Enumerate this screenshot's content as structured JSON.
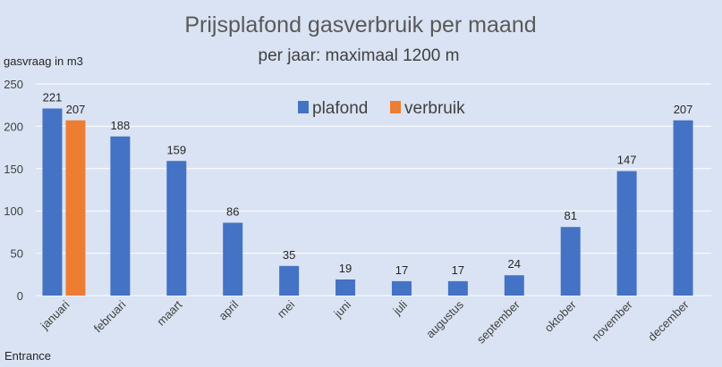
{
  "chart_data": {
    "type": "bar",
    "title": "Prijsplafond gasverbruik per maand",
    "subtitle": "per jaar: maximaal 1200 m",
    "ylabel": "gasvraag in m3",
    "xlabel": "",
    "ylim": [
      0,
      250
    ],
    "yticks": [
      0,
      50,
      100,
      150,
      200,
      250
    ],
    "grid": true,
    "legend_position": "top-center",
    "categories": [
      "januari",
      "februari",
      "maart",
      "april",
      "mei",
      "juni",
      "juli",
      "augustus",
      "september",
      "oktober",
      "november",
      "december"
    ],
    "series": [
      {
        "name": "plafond",
        "color": "#4472c4",
        "values": [
          221,
          188,
          159,
          86,
          35,
          19,
          17,
          17,
          24,
          81,
          147,
          207
        ]
      },
      {
        "name": "verbruik",
        "color": "#ed7d31",
        "values": [
          207,
          null,
          null,
          null,
          null,
          null,
          null,
          null,
          null,
          null,
          null,
          null
        ]
      }
    ],
    "source": "Entrance"
  }
}
